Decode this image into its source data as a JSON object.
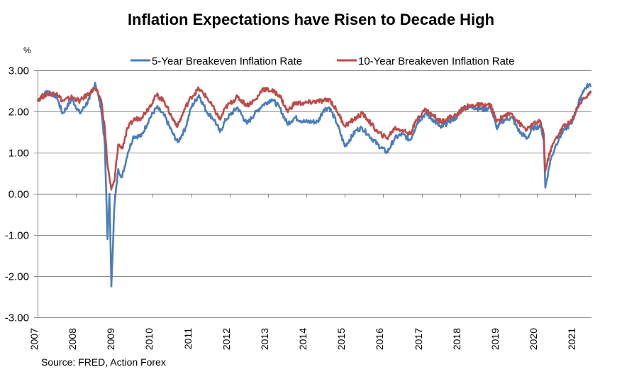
{
  "chart_data": {
    "type": "line",
    "title": "Inflation Expectations have Risen to Decade High",
    "ylabel": "%",
    "xlabel": "",
    "source": "Source: FRED, Action Forex",
    "ylim": [
      -3.0,
      3.0
    ],
    "xlim": [
      2007.0,
      2021.41
    ],
    "grid": "horizontal",
    "legend_position": "top",
    "yticks": [
      "-3.00",
      "-2.00",
      "-1.00",
      "0.00",
      "1.00",
      "2.00",
      "3.00"
    ],
    "ytick_values": [
      -3,
      -2,
      -1,
      0,
      1,
      2,
      3
    ],
    "xticks": [
      "2007",
      "2008",
      "2009",
      "2010",
      "2011",
      "2012",
      "2013",
      "2014",
      "2015",
      "2016",
      "2017",
      "2018",
      "2019",
      "2020",
      "2021"
    ],
    "xtick_values": [
      2007,
      2008,
      2009,
      2010,
      2011,
      2012,
      2013,
      2014,
      2015,
      2016,
      2017,
      2018,
      2019,
      2020,
      2021
    ],
    "x": [
      2007.0,
      2007.25,
      2007.5,
      2007.65,
      2007.9,
      2008.1,
      2008.35,
      2008.5,
      2008.65,
      2008.75,
      2008.82,
      2008.87,
      2008.92,
      2009.0,
      2009.1,
      2009.2,
      2009.35,
      2009.5,
      2009.7,
      2009.9,
      2010.1,
      2010.3,
      2010.5,
      2010.65,
      2010.85,
      2011.0,
      2011.2,
      2011.4,
      2011.6,
      2011.75,
      2011.9,
      2012.2,
      2012.45,
      2012.7,
      2012.85,
      2013.1,
      2013.3,
      2013.5,
      2013.7,
      2013.95,
      2014.3,
      2014.45,
      2014.6,
      2014.8,
      2015.0,
      2015.3,
      2015.45,
      2015.6,
      2015.85,
      2016.1,
      2016.3,
      2016.5,
      2016.7,
      2016.9,
      2017.1,
      2017.3,
      2017.5,
      2017.7,
      2017.9,
      2018.1,
      2018.35,
      2018.6,
      2018.8,
      2018.95,
      2019.15,
      2019.35,
      2019.55,
      2019.75,
      2019.9,
      2020.1,
      2020.18,
      2020.22,
      2020.35,
      2020.5,
      2020.7,
      2020.9,
      2021.05,
      2021.2,
      2021.35,
      2021.41
    ],
    "series": [
      {
        "name": "5-Year Breakeven Inflation Rate",
        "color": "#4a7ebb",
        "values": [
          2.25,
          2.5,
          2.35,
          1.95,
          2.3,
          1.95,
          2.3,
          2.7,
          2.1,
          1.2,
          -1.1,
          0.0,
          -2.25,
          -0.3,
          0.6,
          0.4,
          1.0,
          1.4,
          1.4,
          1.8,
          2.1,
          1.9,
          1.5,
          1.25,
          1.6,
          2.1,
          2.4,
          2.0,
          1.8,
          1.5,
          1.8,
          2.1,
          1.7,
          2.0,
          2.15,
          2.3,
          2.1,
          1.7,
          1.85,
          1.75,
          1.75,
          2.05,
          2.1,
          1.7,
          1.15,
          1.55,
          1.6,
          1.45,
          1.2,
          1.0,
          1.35,
          1.45,
          1.3,
          1.75,
          1.95,
          1.8,
          1.6,
          1.75,
          1.85,
          2.1,
          2.1,
          2.05,
          2.1,
          1.6,
          1.8,
          1.85,
          1.5,
          1.35,
          1.6,
          1.65,
          1.3,
          0.15,
          0.8,
          1.2,
          1.55,
          1.7,
          2.1,
          2.5,
          2.65,
          2.6
        ]
      },
      {
        "name": "10-Year Breakeven Inflation Rate",
        "color": "#be4b48",
        "values": [
          2.3,
          2.42,
          2.45,
          2.25,
          2.35,
          2.25,
          2.45,
          2.55,
          2.3,
          1.6,
          0.7,
          0.4,
          0.1,
          0.3,
          1.2,
          1.1,
          1.6,
          1.8,
          1.85,
          2.1,
          2.4,
          2.25,
          1.85,
          1.65,
          2.1,
          2.35,
          2.55,
          2.35,
          2.05,
          1.8,
          2.1,
          2.35,
          2.15,
          2.3,
          2.55,
          2.5,
          2.4,
          2.0,
          2.2,
          2.2,
          2.25,
          2.25,
          2.3,
          2.0,
          1.65,
          1.85,
          1.95,
          1.8,
          1.5,
          1.35,
          1.6,
          1.55,
          1.45,
          1.85,
          2.05,
          1.9,
          1.75,
          1.85,
          1.9,
          2.1,
          2.15,
          2.15,
          2.15,
          1.75,
          1.9,
          1.95,
          1.7,
          1.55,
          1.7,
          1.75,
          1.45,
          0.55,
          1.05,
          1.35,
          1.65,
          1.75,
          2.1,
          2.3,
          2.4,
          2.45
        ]
      }
    ]
  }
}
